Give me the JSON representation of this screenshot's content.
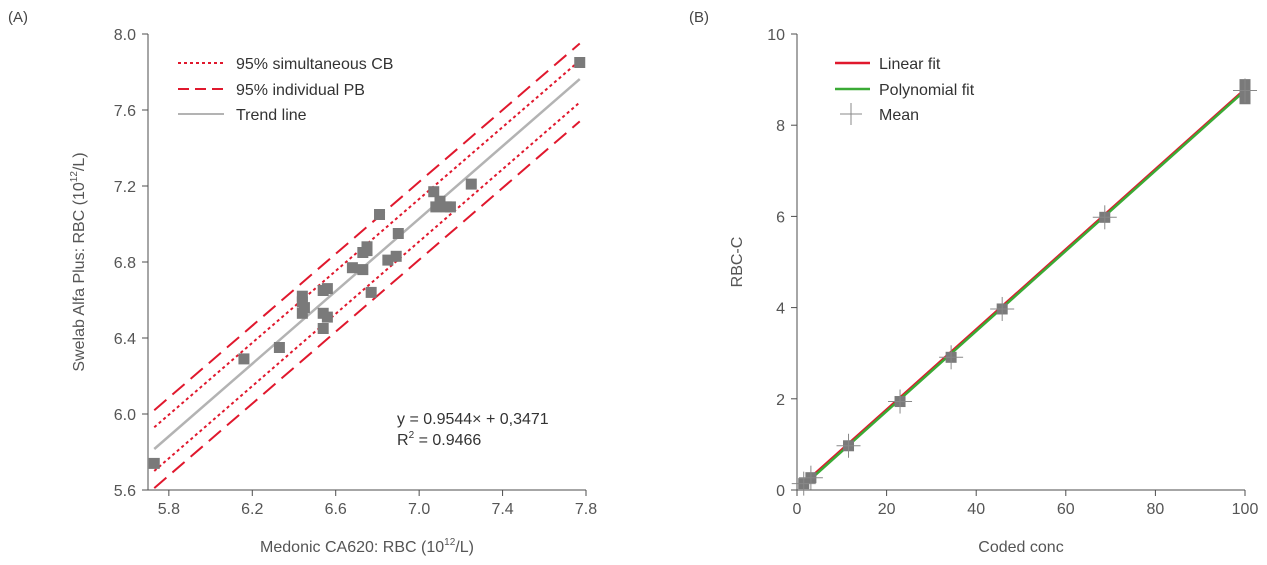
{
  "chart_data": [
    {
      "panel_label": "(A)",
      "type": "scatter",
      "xlabel_main": "Medonic CA620: RBC (10",
      "xlabel_sup": "12",
      "xlabel_end": "/L)",
      "ylabel_main": "Swelab Alfa Plus: RBC (10",
      "ylabel_sup": "12",
      "ylabel_end": "/L)",
      "xlim": [
        5.7,
        7.8
      ],
      "ylim": [
        5.6,
        8.0
      ],
      "xticks": [
        5.8,
        6.2,
        6.6,
        7.0,
        7.4,
        7.8
      ],
      "xtick_labels": [
        "5.8",
        "6.2",
        "6.6",
        "7.0",
        "7.4",
        "7.8"
      ],
      "yticks": [
        5.6,
        6.0,
        6.4,
        6.8,
        7.2,
        7.6,
        8.0
      ],
      "ytick_labels": [
        "5.6",
        "6.0",
        "6.4",
        "6.8",
        "7.2",
        "7.6",
        "8.0"
      ],
      "legend_position": "top-left",
      "legend": [
        {
          "label": "95% simultaneous CB",
          "style": "dotted",
          "color": "#e0182d"
        },
        {
          "label": "95% individual PB",
          "style": "dashed",
          "color": "#e0182d"
        },
        {
          "label": "Trend line",
          "style": "solid",
          "color": "#b3b3b3"
        }
      ],
      "annotation_eq": "y = 0.9544× + 0,3471",
      "annotation_r2_main": "R",
      "annotation_r2_sup": "2",
      "annotation_r2_end": " = 0.9466",
      "marker_color": "#7a7a7a",
      "points": [
        [
          5.73,
          5.74
        ],
        [
          6.16,
          6.29
        ],
        [
          6.33,
          6.35
        ],
        [
          6.44,
          6.62
        ],
        [
          6.44,
          6.59
        ],
        [
          6.45,
          6.56
        ],
        [
          6.44,
          6.53
        ],
        [
          6.54,
          6.65
        ],
        [
          6.56,
          6.66
        ],
        [
          6.54,
          6.53
        ],
        [
          6.56,
          6.51
        ],
        [
          6.54,
          6.45
        ],
        [
          6.68,
          6.77
        ],
        [
          6.73,
          6.85
        ],
        [
          6.75,
          6.88
        ],
        [
          6.75,
          6.86
        ],
        [
          6.73,
          6.76
        ],
        [
          6.77,
          6.64
        ],
        [
          6.81,
          7.05
        ],
        [
          6.85,
          6.81
        ],
        [
          6.89,
          6.83
        ],
        [
          6.9,
          6.95
        ],
        [
          7.07,
          7.17
        ],
        [
          7.08,
          7.09
        ],
        [
          7.1,
          7.12
        ],
        [
          7.13,
          7.09
        ],
        [
          7.15,
          7.09
        ],
        [
          7.25,
          7.21
        ],
        [
          7.77,
          7.85
        ]
      ],
      "trend": {
        "slope": 0.9544,
        "intercept": 0.3471,
        "x_range": [
          5.73,
          7.77
        ]
      },
      "conf_band": {
        "upper": [
          [
            5.73,
            5.93
          ],
          [
            7.77,
            7.86
          ]
        ],
        "lower": [
          [
            5.73,
            5.7
          ],
          [
            7.77,
            7.64
          ]
        ]
      },
      "pred_band": {
        "upper": [
          [
            5.73,
            6.02
          ],
          [
            7.77,
            7.95
          ]
        ],
        "lower": [
          [
            5.73,
            5.61
          ],
          [
            7.77,
            7.54
          ]
        ]
      }
    },
    {
      "panel_label": "(B)",
      "type": "line",
      "xlabel": "Coded conc",
      "ylabel": "RBC-C",
      "xlim": [
        0,
        100
      ],
      "ylim": [
        0,
        10
      ],
      "xticks": [
        0,
        20,
        40,
        60,
        80,
        100
      ],
      "xtick_labels": [
        "0",
        "20",
        "40",
        "60",
        "80",
        "100"
      ],
      "yticks": [
        0,
        2,
        4,
        6,
        8,
        10
      ],
      "ytick_labels": [
        "0",
        "2",
        "4",
        "6",
        "8",
        "10"
      ],
      "legend_position": "top-left",
      "legend": [
        {
          "label": "Linear fit",
          "style": "line",
          "color": "#e0182d"
        },
        {
          "label": "Polynomial fit",
          "style": "line",
          "color": "#3aaa35"
        },
        {
          "label": "Mean",
          "style": "plus",
          "color": "#888888"
        }
      ],
      "series": [
        {
          "name": "Linear fit",
          "color": "#e0182d",
          "x": [
            1.5,
            100
          ],
          "y": [
            0.14,
            8.79
          ]
        },
        {
          "name": "Polynomial fit",
          "color": "#3aaa35",
          "x": [
            1.5,
            100
          ],
          "y": [
            0.1,
            8.76
          ]
        }
      ],
      "marker_color": "#7a7a7a",
      "points": [
        [
          1.5,
          0.14
        ],
        [
          3.1,
          0.27
        ],
        [
          11.5,
          0.97
        ],
        [
          23.0,
          1.94
        ],
        [
          34.4,
          2.91
        ],
        [
          45.8,
          3.97
        ],
        [
          68.7,
          5.98
        ],
        [
          100,
          8.89
        ],
        [
          100,
          8.78
        ],
        [
          100,
          8.58
        ]
      ],
      "means": [
        [
          1.5,
          0.14
        ],
        [
          3.1,
          0.27
        ],
        [
          11.5,
          0.97
        ],
        [
          23.0,
          1.94
        ],
        [
          34.4,
          2.91
        ],
        [
          45.8,
          3.97
        ],
        [
          68.7,
          5.98
        ],
        [
          100,
          8.76
        ]
      ]
    }
  ]
}
